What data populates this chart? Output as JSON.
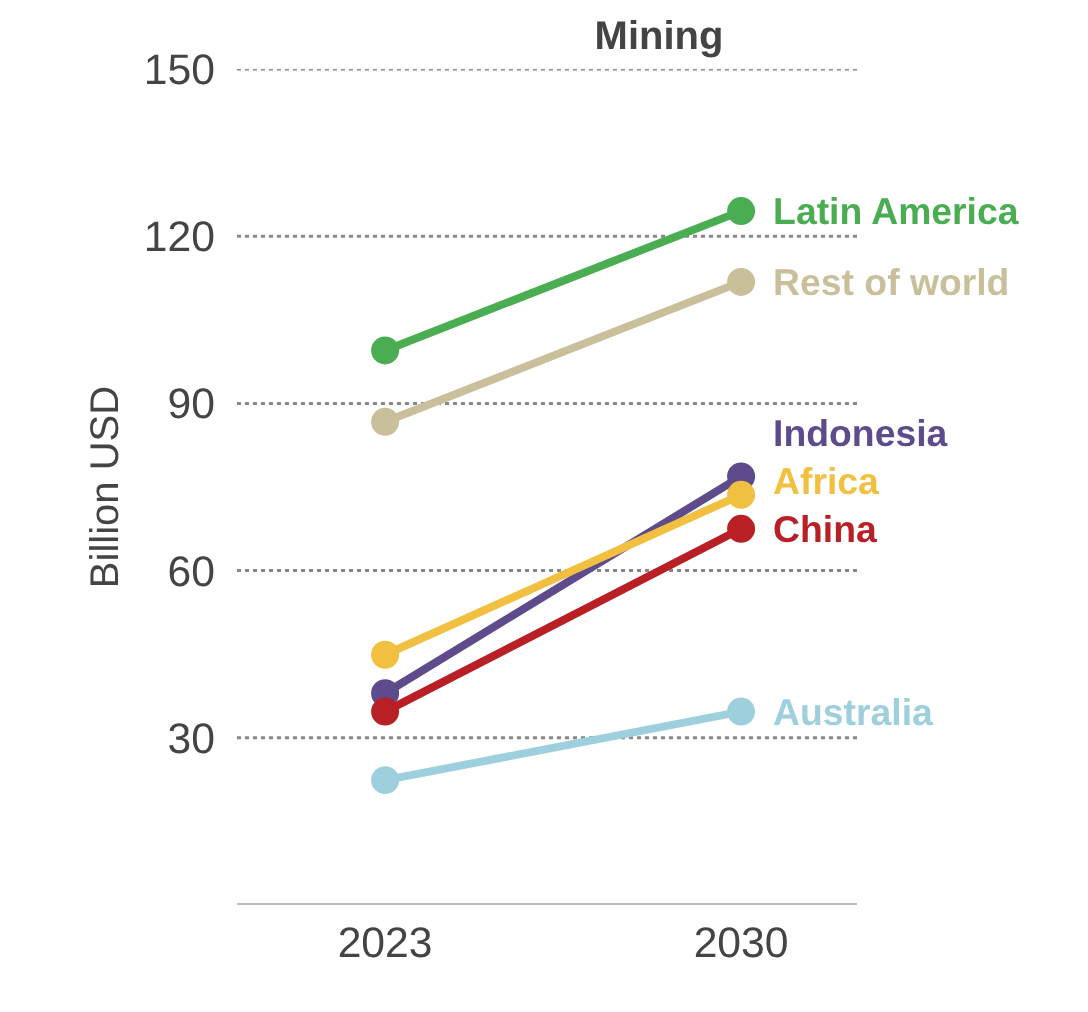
{
  "chart_data": {
    "type": "line",
    "title": "Mining",
    "ylabel": "Billion USD",
    "categories": [
      "2023",
      "2030"
    ],
    "series": [
      {
        "name": "Latin America",
        "color": "#4aad52",
        "values": [
          99.5,
          124.5
        ]
      },
      {
        "name": "Rest of world",
        "color": "#c9bf9a",
        "values": [
          86.7,
          111.8
        ]
      },
      {
        "name": "Indonesia",
        "color": "#5e4b8b",
        "values": [
          38,
          76.9
        ]
      },
      {
        "name": "Africa",
        "color": "#f2c040",
        "values": [
          44.9,
          73.6
        ]
      },
      {
        "name": "China",
        "color": "#b82025",
        "values": [
          34.7,
          67.5
        ]
      },
      {
        "name": "Australia",
        "color": "#9ecfdc",
        "values": [
          22.4,
          34.7
        ]
      }
    ],
    "ylim": [
      0,
      150
    ],
    "yticks": [
      30,
      60,
      90,
      120,
      150
    ],
    "grid": "y",
    "marker": "circle",
    "line_style": "solid",
    "legend": false
  }
}
